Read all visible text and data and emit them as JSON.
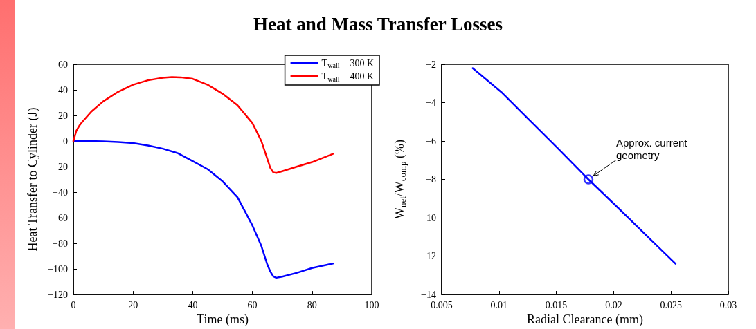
{
  "chart_data": [
    {
      "type": "line",
      "title": "Heat and Mass Transfer Losses",
      "xlabel": "Time (ms)",
      "ylabel": "Heat Transfer to Cylinder (J)",
      "xlim": [
        0,
        100
      ],
      "xticks": [
        0,
        20,
        40,
        60,
        80,
        100
      ],
      "ylim": [
        -120,
        60
      ],
      "yticks": [
        -120,
        -100,
        -80,
        -60,
        -40,
        -20,
        0,
        20,
        40,
        60
      ],
      "grid": false,
      "legend": "top right",
      "marker": "none",
      "line_style": "solid",
      "series": [
        {
          "name": "T$_{wall}$ = 300 K",
          "color": "#0000ff",
          "x": [
            0,
            5,
            10,
            15,
            20,
            25,
            30,
            35,
            40,
            45,
            50,
            55,
            60,
            63,
            65,
            66,
            67,
            68,
            70,
            75,
            80,
            87
          ],
          "values": [
            0,
            0,
            -0.3,
            -0.8,
            -1.6,
            -3.5,
            -6,
            -9.5,
            -15.7,
            -22,
            -31.5,
            -44,
            -66,
            -82,
            -96.6,
            -102,
            -105.8,
            -106.9,
            -106,
            -103,
            -99.3,
            -95.8
          ]
        },
        {
          "name": "T$_{wall}$ = 400 K",
          "color": "#ff0000",
          "x": [
            0,
            1,
            2,
            3,
            6,
            10,
            15,
            20,
            25,
            30,
            33,
            36,
            40,
            45,
            50,
            55,
            60,
            63,
            65,
            66,
            67,
            68,
            70,
            75,
            80,
            87
          ],
          "values": [
            0,
            8,
            12,
            15,
            23,
            31,
            38.5,
            44,
            47.5,
            49.5,
            50,
            49.8,
            48.6,
            44,
            37,
            28,
            14,
            0,
            -14,
            -21,
            -24.5,
            -25,
            -23.6,
            -20,
            -16.5,
            -10
          ]
        }
      ]
    },
    {
      "type": "line",
      "xlabel": "Radial Clearance (mm)",
      "ylabel": "W$_{net}$/W$_{comp}$ (%)",
      "xlim": [
        0.005,
        0.03
      ],
      "xticks": [
        0.005,
        0.01,
        0.015,
        0.02,
        0.025,
        0.03
      ],
      "ylim": [
        -14,
        -2
      ],
      "yticks": [
        -14,
        -12,
        -10,
        -8,
        -6,
        -4,
        -2
      ],
      "grid": false,
      "legend": false,
      "marker": "none",
      "line_style": "solid",
      "annotations": [
        {
          "text": "Approx. current geometry",
          "x": 0.0178,
          "y": -8
        }
      ],
      "series": [
        {
          "color": "#0000ff",
          "x": [
            0.0077,
            0.0102,
            0.015,
            0.0178,
            0.0205,
            0.0229,
            0.0254
          ],
          "values": [
            -2.2,
            -3.45,
            -6.3,
            -8,
            -9.55,
            -10.95,
            -12.4
          ]
        },
        {
          "type": "scatter",
          "marker": "circle",
          "color": "#0000ff",
          "x": [
            0.0178
          ],
          "values": [
            -8
          ]
        }
      ]
    }
  ]
}
